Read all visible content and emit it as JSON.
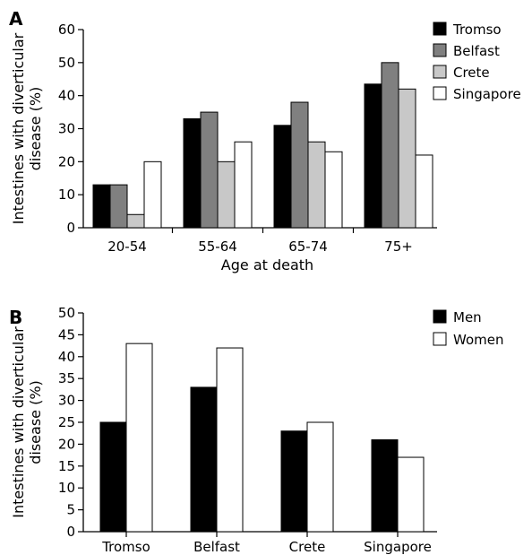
{
  "chart_data": [
    {
      "panel": "A",
      "type": "bar",
      "title": "",
      "xlabel": "Age at death",
      "ylabel": [
        "Intestines with diverticular",
        "disease (%)"
      ],
      "categories": [
        "20-54",
        "55-64",
        "65-74",
        "75+"
      ],
      "ylim": [
        0,
        60
      ],
      "yticks": [
        0,
        10,
        20,
        30,
        40,
        50,
        60
      ],
      "legend_position": "top-right",
      "grid": false,
      "series": [
        {
          "name": "Tromso",
          "color": "#000000",
          "values": [
            13,
            33,
            31,
            43.5
          ]
        },
        {
          "name": "Belfast",
          "color": "#808080",
          "values": [
            13,
            35,
            38,
            50
          ]
        },
        {
          "name": "Crete",
          "color": "#c8c8c8",
          "values": [
            4,
            20,
            26,
            42
          ]
        },
        {
          "name": "Singapore",
          "color": "#ffffff",
          "values": [
            20,
            26,
            23,
            22
          ]
        }
      ]
    },
    {
      "panel": "B",
      "type": "bar",
      "title": "",
      "xlabel": "",
      "ylabel": [
        "Intestines with diverticular",
        "disease (%)"
      ],
      "categories": [
        "Tromso",
        "Belfast",
        "Crete",
        "Singapore"
      ],
      "ylim": [
        0,
        50
      ],
      "yticks": [
        0,
        5,
        10,
        15,
        20,
        25,
        30,
        35,
        40,
        45,
        50
      ],
      "legend_position": "top-right",
      "grid": false,
      "series": [
        {
          "name": "Men",
          "color": "#000000",
          "values": [
            25,
            33,
            23,
            21
          ]
        },
        {
          "name": "Women",
          "color": "#ffffff",
          "values": [
            43,
            42,
            25,
            17
          ]
        }
      ]
    }
  ]
}
